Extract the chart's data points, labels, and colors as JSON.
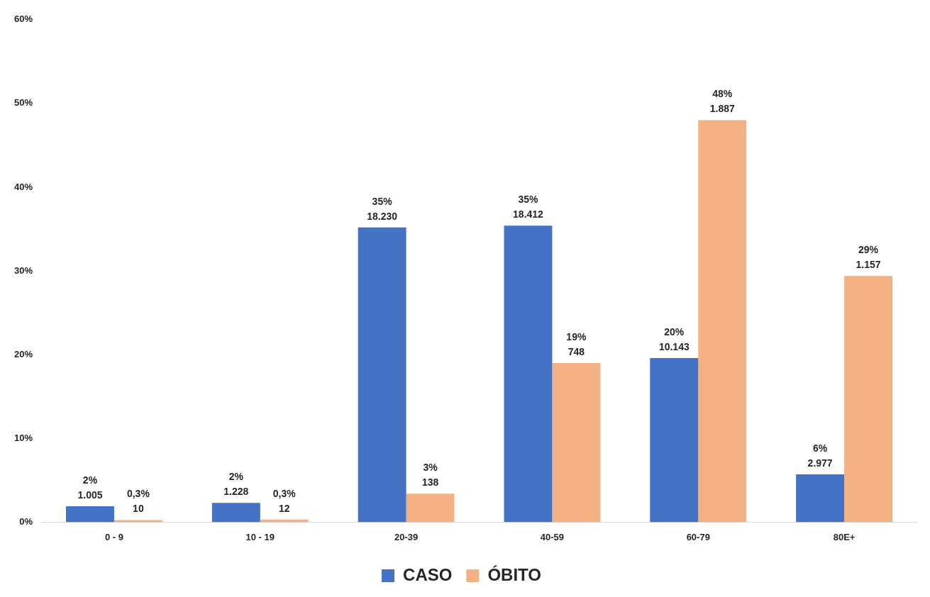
{
  "chart_data": {
    "type": "bar",
    "categories": [
      "0 - 9",
      "10 - 19",
      "20-39",
      "40-59",
      "60-79",
      "80E+"
    ],
    "series": [
      {
        "name": "CASO",
        "color": "#4472c4",
        "values": [
          1.9,
          2.3,
          35.2,
          35.4,
          19.6,
          5.7
        ],
        "value_labels": [
          "2%\n1.005",
          "2%\n1.228",
          "35%\n18.230",
          "35%\n18.412",
          "20%\n10.143",
          "6%\n2.977"
        ]
      },
      {
        "name": "ÓBITO",
        "color": "#f4b183",
        "values": [
          0.25,
          0.3,
          3.4,
          19.0,
          48.0,
          29.4
        ],
        "value_labels": [
          "0,3%\n10",
          "0,3%\n12",
          "3%\n138",
          "19%\n748",
          "48%\n1.887",
          "29%\n1.157"
        ]
      }
    ],
    "ylim": [
      0,
      60
    ],
    "yticks": [
      {
        "value": 0,
        "label": "0%"
      },
      {
        "value": 10,
        "label": "10%"
      },
      {
        "value": 20,
        "label": "20%"
      },
      {
        "value": 30,
        "label": "30%"
      },
      {
        "value": 40,
        "label": "40%"
      },
      {
        "value": 50,
        "label": "50%"
      },
      {
        "value": 60,
        "label": "60%"
      }
    ],
    "grid": false,
    "legend": "bottom"
  }
}
